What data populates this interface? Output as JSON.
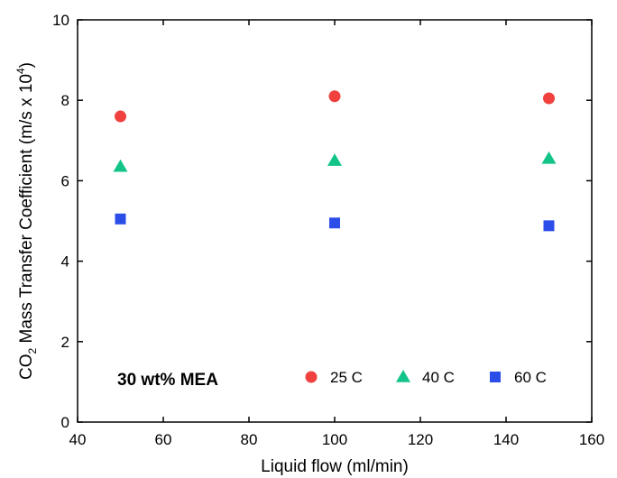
{
  "chart_data": {
    "type": "scatter",
    "xlabel": "Liquid flow (ml/min)",
    "ylabel": {
      "part1": "CO",
      "sub": "2",
      "part2": " Mass Transfer Coefficient (m/s x 10",
      "sup": "4",
      "part3": ")"
    },
    "xlim": [
      40,
      160
    ],
    "ylim": [
      0,
      10
    ],
    "x_ticks": [
      40,
      60,
      80,
      100,
      120,
      140,
      160
    ],
    "y_ticks": [
      0,
      2,
      4,
      6,
      8,
      10
    ],
    "grid": false,
    "legend_position": "bottom-right",
    "annotation": "30 wt% MEA",
    "series": [
      {
        "name": "25 C",
        "marker": "circle",
        "color": "#f0413f",
        "x": [
          50,
          100,
          150
        ],
        "y": [
          7.6,
          8.1,
          8.05
        ]
      },
      {
        "name": "40 C",
        "marker": "triangle",
        "color": "#12c48a",
        "x": [
          50,
          100,
          150
        ],
        "y": [
          6.35,
          6.5,
          6.55
        ]
      },
      {
        "name": "60 C",
        "marker": "square",
        "color": "#2b4de8",
        "x": [
          50,
          100,
          150
        ],
        "y": [
          5.05,
          4.95,
          4.88
        ]
      }
    ]
  }
}
